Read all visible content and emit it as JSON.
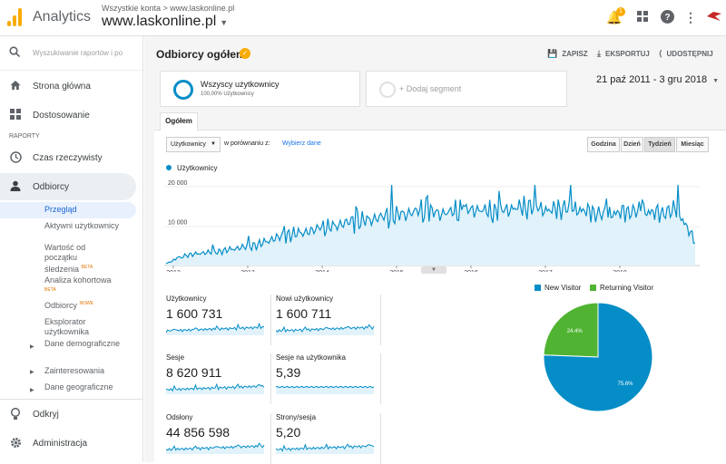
{
  "topbar": {
    "app_name": "Analytics",
    "breadcrumb": "Wszystkie konta > www.laskonline.pl",
    "account": "www.laskonline.pl",
    "notification_count": "1",
    "icons": [
      "bell-icon",
      "apps-grid-icon",
      "help-icon",
      "more-vert-icon",
      "user-logo-icon"
    ]
  },
  "sidebar": {
    "search_placeholder": "Wyszukiwanie raportów i po",
    "home": "Strona główna",
    "customize": "Dostosowanie",
    "section_label": "RAPORTY",
    "realtime": "Czas rzeczywisty",
    "audience": "Odbiorcy",
    "sub": {
      "overview": "Przegląd",
      "active_users": "Aktywni użytkownicy",
      "ltv": "Wartość od początku śledzenia",
      "cohort": "Analiza kohortowa",
      "audiences": "Odbiorcy",
      "user_explorer": "Eksplorator użytkownika",
      "demographics": "Dane demograficzne",
      "interests": "Zainteresowania",
      "geo": "Dane geograficzne"
    },
    "beta": "BETA",
    "new": "NOWE",
    "discover": "Odkryj",
    "admin": "Administracja"
  },
  "header": {
    "title": "Odbiorcy ogółem",
    "save": "ZAPISZ",
    "export": "EKSPORTUJ",
    "share": "UDOSTĘPNIJ"
  },
  "segments": {
    "all_users": "Wszyscy użytkownicy",
    "all_users_pct": "100,00% Użytkownicy",
    "add": "+ Dodaj segment"
  },
  "date_range": "21 paź 2011 - 3 gru 2018",
  "tab": "Ogółem",
  "controls": {
    "metric": "Użytkownicy",
    "vs": "w porównaniu z:",
    "pick": "Wybierz dane",
    "granularity": [
      "Godzina",
      "Dzień",
      "Tydzień",
      "Miesiąc"
    ],
    "selected_granularity": "Tydzień"
  },
  "accent": "#058dc7",
  "chart_data": {
    "type": "line",
    "series": [
      {
        "name": "Użytkownicy"
      }
    ],
    "x_ticks": [
      "2012",
      "2013",
      "2014",
      "2015",
      "2016",
      "2017",
      "2018"
    ],
    "y_ticks": [
      "10 000",
      "20 000"
    ],
    "ylim": [
      0,
      22000
    ],
    "x": [
      "2011-10",
      "2012-01",
      "2012-04",
      "2012-07",
      "2012-10",
      "2013-01",
      "2013-04",
      "2013-07",
      "2013-10",
      "2014-01",
      "2014-04",
      "2014-07",
      "2014-10",
      "2015-01",
      "2015-04",
      "2015-07",
      "2015-10",
      "2016-01",
      "2016-04",
      "2016-07",
      "2016-10",
      "2017-01",
      "2017-04",
      "2017-07",
      "2017-10",
      "2018-01",
      "2018-04",
      "2018-07",
      "2018-10",
      "2018-12"
    ],
    "values": [
      500,
      2500,
      3200,
      3600,
      4500,
      5200,
      7000,
      8000,
      8800,
      9800,
      11000,
      11500,
      12500,
      13000,
      14000,
      13200,
      13800,
      14200,
      13500,
      14500,
      15000,
      14000,
      14800,
      13800,
      13000,
      13500,
      14000,
      13200,
      14200,
      6000
    ]
  },
  "metrics": [
    {
      "label": "Użytkownicy",
      "value": "1 600 731"
    },
    {
      "label": "Nowi użytkownicy",
      "value": "1 600 711"
    },
    {
      "label": "Sesje",
      "value": "8 620 911"
    },
    {
      "label": "Sesje na użytkownika",
      "value": "5,39"
    },
    {
      "label": "Odsłony",
      "value": "44 856 598"
    },
    {
      "label": "Strony/sesja",
      "value": "5,20"
    }
  ],
  "pie_data": {
    "type": "pie",
    "slices": [
      {
        "name": "New Visitor",
        "value": 75.6,
        "label": "75.6%",
        "color": "#058dc7"
      },
      {
        "name": "Returning Visitor",
        "value": 24.4,
        "label": "24.4%",
        "color": "#50b432"
      }
    ]
  }
}
